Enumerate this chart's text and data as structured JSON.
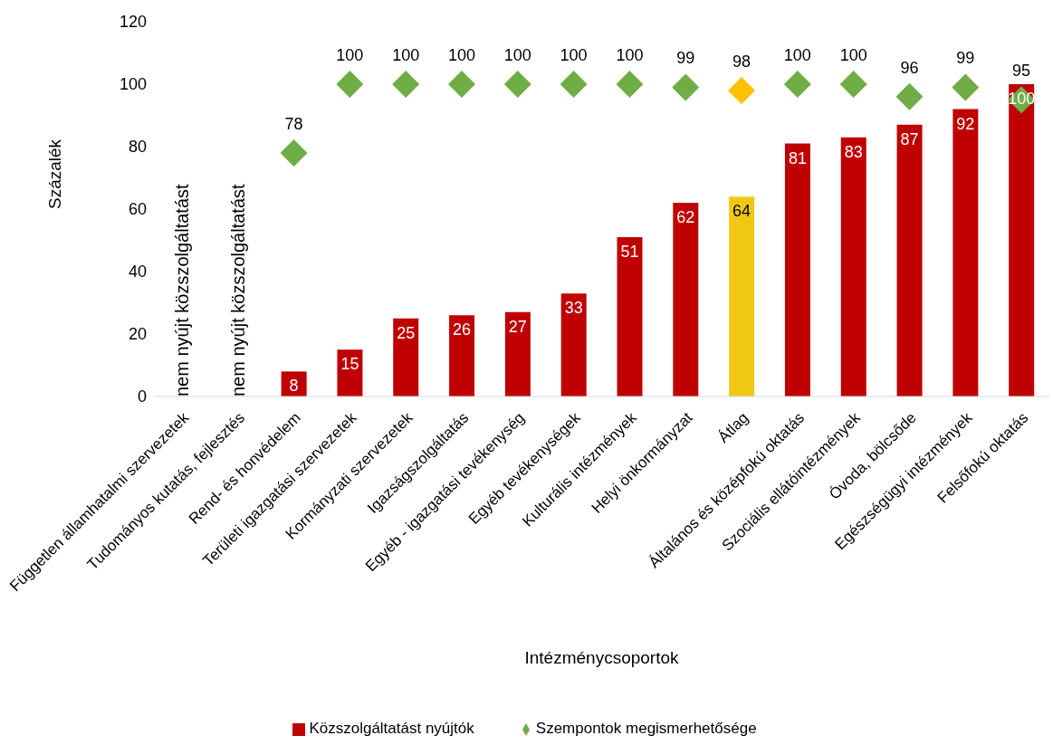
{
  "chart_data": {
    "type": "bar",
    "xlabel": "Intézménycsoportok",
    "ylabel": "Százalék",
    "categories": [
      "Független államhatalmi szervezetek",
      "Tudományos kutatás, fejlesztés",
      "Rend- és honvédelem",
      "Területi igazgatási szervezetek",
      "Kormányzati szervezetek",
      "Igazságszolgáltatás",
      "Egyéb - igazgatási tevékenység",
      "Egyéb tevékenységek",
      "Kulturális intézmények",
      "Helyi önkormányzat",
      "Átlag",
      "Általános és középfokú oktatás",
      "Szociális ellátóintézmények",
      "Óvoda, bölcsőde",
      "Egészségügyi intézmények",
      "Felsőfokú oktatás"
    ],
    "series": [
      {
        "name": "Közszolgáltatást nyújtók",
        "color": "#c00000",
        "colors": [
          "#c00000",
          "#c00000",
          "#c00000",
          "#c00000",
          "#c00000",
          "#c00000",
          "#c00000",
          "#c00000",
          "#c00000",
          "#c00000",
          "#f0c814",
          "#c00000",
          "#c00000",
          "#c00000",
          "#c00000",
          "#c00000"
        ],
        "values": [
          null,
          null,
          8,
          15,
          25,
          26,
          27,
          33,
          51,
          62,
          64,
          81,
          83,
          87,
          92,
          100
        ]
      },
      {
        "name": "Szempontok megismerhetősége",
        "type": "scatter",
        "color": "#70ad47",
        "colors": [
          "#70ad47",
          "#70ad47",
          "#70ad47",
          "#70ad47",
          "#70ad47",
          "#70ad47",
          "#70ad47",
          "#70ad47",
          "#70ad47",
          "#70ad47",
          "#ffc000",
          "#70ad47",
          "#70ad47",
          "#70ad47",
          "#70ad47",
          "#70ad47"
        ],
        "values": [
          null,
          null,
          78,
          100,
          100,
          100,
          100,
          100,
          100,
          99,
          98,
          100,
          100,
          96,
          99,
          95
        ]
      }
    ],
    "ylim": [
      0,
      120
    ],
    "yticks": [
      0,
      20,
      40,
      60,
      80,
      100,
      120
    ],
    "grid": false,
    "legend": "bottom",
    "marker": "diamond",
    "data_labels": true,
    "annotations": [
      "nem nyújt közszolgáltatást",
      "nem nyújt közszolgáltatást"
    ]
  }
}
